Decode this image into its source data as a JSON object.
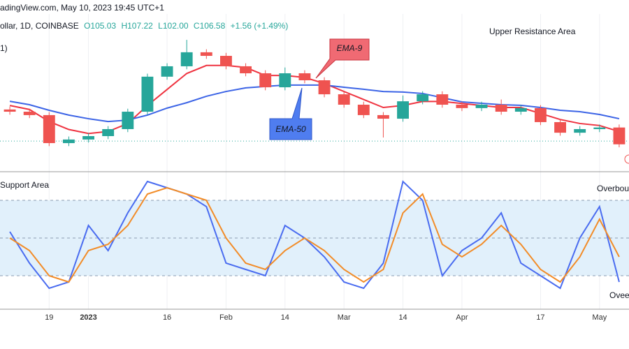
{
  "header": {
    "source": "adingView.com, May 10, 2023 19:45 UTC+1",
    "symbol": "ollar, 1D, COINBASE",
    "open": "O105.03",
    "high": "H107.22",
    "low": "L102.00",
    "close": "C106.58",
    "change": "+1.56 (+1.49%)",
    "indicator": "1)"
  },
  "chart_data": [
    {
      "type": "candlestick",
      "up_color": "#26a69a",
      "down_color": "#ef5350",
      "categories": [
        null,
        null,
        "19",
        null,
        "2023",
        null,
        null,
        null,
        "16",
        null,
        null,
        "Feb",
        null,
        null,
        "14",
        null,
        null,
        "Mar",
        null,
        null,
        "14",
        null,
        null,
        "Apr",
        null,
        null,
        null,
        "17",
        null,
        null,
        "May",
        null
      ],
      "ohlc": [
        [
          124.0,
          125.5,
          121.4,
          122.9
        ],
        [
          122.9,
          124.4,
          119.7,
          121.2
        ],
        [
          121.2,
          122.7,
          105.7,
          107.2
        ],
        [
          107.2,
          110.5,
          105.7,
          109.0
        ],
        [
          109.0,
          112.2,
          107.5,
          110.7
        ],
        [
          110.7,
          115.7,
          109.2,
          114.2
        ],
        [
          114.2,
          124.4,
          112.7,
          122.9
        ],
        [
          122.9,
          141.9,
          121.4,
          140.4
        ],
        [
          140.4,
          147.1,
          138.9,
          145.6
        ],
        [
          145.6,
          158.8,
          144.1,
          152.6
        ],
        [
          152.6,
          154.1,
          149.3,
          150.8
        ],
        [
          150.8,
          152.3,
          144.1,
          145.6
        ],
        [
          145.6,
          147.1,
          140.6,
          142.1
        ],
        [
          142.1,
          143.6,
          133.6,
          135.1
        ],
        [
          135.1,
          145.0,
          133.6,
          142.1
        ],
        [
          142.1,
          143.6,
          137.1,
          138.6
        ],
        [
          138.6,
          140.1,
          130.1,
          131.6
        ],
        [
          131.6,
          133.1,
          124.9,
          126.4
        ],
        [
          126.4,
          127.9,
          119.7,
          121.2
        ],
        [
          121.2,
          122.7,
          110.0,
          119.4
        ],
        [
          119.4,
          131.0,
          117.9,
          128.1
        ],
        [
          128.1,
          133.1,
          126.6,
          131.6
        ],
        [
          131.6,
          133.1,
          124.9,
          126.4
        ],
        [
          126.4,
          127.9,
          123.2,
          124.7
        ],
        [
          124.7,
          127.9,
          123.2,
          126.4
        ],
        [
          126.4,
          129.0,
          121.4,
          122.9
        ],
        [
          122.9,
          126.2,
          121.4,
          124.7
        ],
        [
          124.7,
          126.2,
          116.2,
          117.7
        ],
        [
          117.7,
          119.2,
          110.9,
          112.4
        ],
        [
          112.4,
          115.7,
          110.9,
          114.2
        ],
        [
          114.2,
          116.5,
          112.7,
          115.0
        ],
        [
          115.0,
          116.5,
          105.1,
          106.6
        ]
      ],
      "series": [
        {
          "name": "EMA-9",
          "color": "#ef3340",
          "values": [
            126,
            124,
            118,
            114,
            112,
            113,
            117,
            126,
            134,
            142,
            146,
            146,
            145,
            141,
            141,
            140,
            137,
            133,
            129,
            125,
            126,
            128,
            128,
            127,
            126,
            125,
            125,
            122,
            119,
            117,
            116,
            113
          ]
        },
        {
          "name": "EMA-50",
          "color": "#3c64e6",
          "values": [
            128.1,
            126.4,
            123.6,
            121.2,
            119.4,
            118.0,
            118.7,
            121.2,
            124.7,
            127.4,
            130.6,
            133.0,
            134.8,
            135.5,
            136.2,
            136.2,
            136.2,
            135.1,
            134.1,
            133.0,
            132.7,
            132.0,
            129.9,
            127.8,
            127.1,
            126.4,
            126.1,
            125.0,
            123.6,
            122.9,
            121.5,
            119.4
          ]
        }
      ],
      "support_line": 108.2,
      "ylim": [
        95,
        170
      ],
      "annotations": {
        "resistance": "Upper Resistance Area"
      }
    },
    {
      "type": "line",
      "series": [
        {
          "color": "#4a6cf0",
          "values": [
            55,
            30,
            10,
            15,
            60,
            40,
            70,
            95,
            90,
            85,
            75,
            30,
            25,
            20,
            60,
            50,
            35,
            15,
            10,
            30,
            95,
            80,
            20,
            40,
            50,
            70,
            30,
            20,
            10,
            50,
            75,
            15
          ]
        },
        {
          "color": "#f28c28",
          "values": [
            50,
            40,
            20,
            15,
            40,
            45,
            60,
            85,
            90,
            85,
            80,
            50,
            30,
            25,
            40,
            50,
            40,
            25,
            15,
            25,
            70,
            85,
            45,
            35,
            45,
            60,
            45,
            25,
            15,
            35,
            65,
            35
          ]
        }
      ],
      "band": [
        20,
        80
      ],
      "band_color": "#e1f0fb",
      "ylim": [
        0,
        100
      ],
      "yticks": [
        20,
        50,
        80
      ],
      "annotations": {
        "support": "Support Area",
        "overbought": "Overbou",
        "oversold": "Ovee"
      }
    }
  ]
}
